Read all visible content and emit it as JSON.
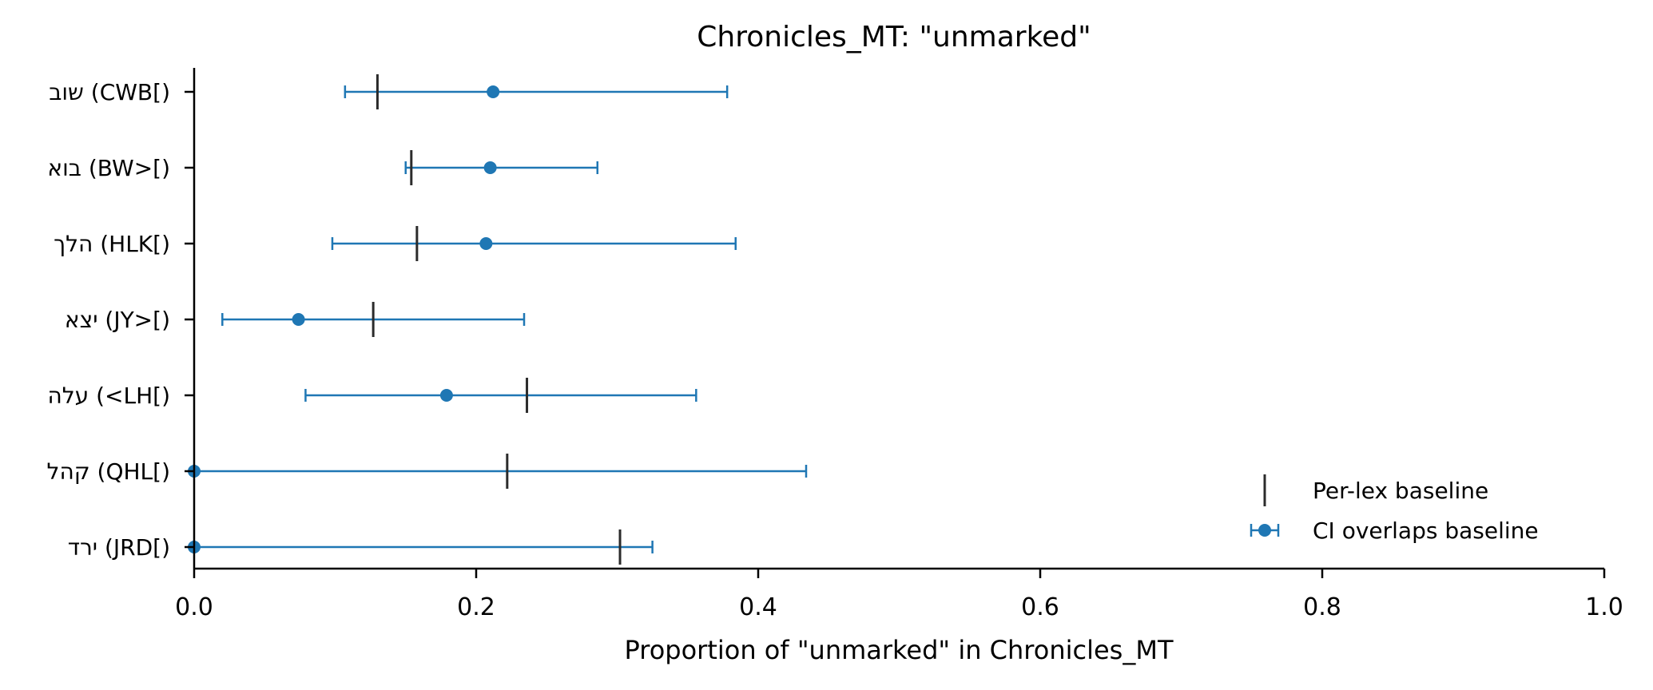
{
  "chart_data": {
    "type": "scatter",
    "subtype": "horizontal-errorbar",
    "title": "Chronicles_MT: \"unmarked\"",
    "xlabel": "Proportion of \"unmarked\" in Chronicles_MT",
    "ylabel": "",
    "xlim": [
      0.0,
      1.0
    ],
    "xticks": [
      0.0,
      0.2,
      0.4,
      0.6,
      0.8,
      1.0
    ],
    "xtick_labels": [
      "0.0",
      "0.2",
      "0.4",
      "0.6",
      "0.8",
      "1.0"
    ],
    "grid": false,
    "legend_position": "lower-right",
    "legend": [
      {
        "name": "Per-lex baseline",
        "marker": "vertical-line",
        "color": "#2b2b2b"
      },
      {
        "name": "CI overlaps baseline",
        "marker": "point-errorbar",
        "color": "#1f77b4"
      }
    ],
    "categories": [
      "שוב (CWB[)",
      "בוא (BW>[)",
      "הלך (HLK[)",
      "יצא (JY>[)",
      "עלה (<LH[)",
      "קהל (QHL[)",
      "ירד (JRD[)"
    ],
    "points": [
      0.212,
      0.21,
      0.207,
      0.074,
      0.179,
      0.0,
      0.0
    ],
    "ci_low": [
      0.107,
      0.15,
      0.098,
      0.02,
      0.079,
      0.0,
      0.0
    ],
    "ci_high": [
      0.378,
      0.286,
      0.384,
      0.234,
      0.356,
      0.434,
      0.325
    ],
    "baseline": [
      0.13,
      0.154,
      0.158,
      0.127,
      0.236,
      0.222,
      0.302
    ],
    "colors": {
      "series": "#1f77b4",
      "baseline": "#2b2b2b",
      "axis": "#000000"
    }
  }
}
